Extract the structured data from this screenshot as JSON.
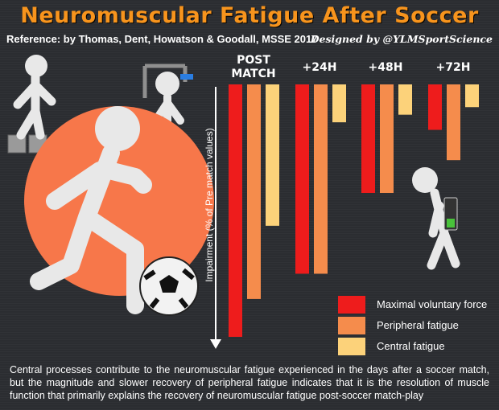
{
  "title": "Neuromuscular Fatigue After Soccer",
  "reference": "Reference: by Thomas, Dent, Howatson & Goodall, MSSE 2017",
  "credit": "Designed by @YLMSportScience",
  "footer_text": "Central processes contribute to the neuromuscular fatigue experienced in the days after a soccer match, but the magnitude and slower recovery of peripheral fatigue indicates that it is the resolution of muscle function that primarily explains the recovery of neuromuscular fatigue post-soccer match-play",
  "colors": {
    "background": "#2b2d31",
    "title": "#f7941d",
    "maximal_voluntary_force": "#ee1c1c",
    "peripheral_fatigue": "#f58c4c",
    "central_fatigue": "#fcd27a",
    "orange_circle": "#f7774a"
  },
  "icons": [
    "stick-figure-on-blocks-icon",
    "stick-figure-clamp-head-icon",
    "running-stick-figure-kicking-ball-icon",
    "tired-stick-figure-low-battery-icon"
  ],
  "chart_data": {
    "type": "bar",
    "title": "",
    "xlabel": "",
    "ylabel": "Impairment (% of Pre match values)",
    "orientation": "downward",
    "categories": [
      "POST MATCH",
      "+24H",
      "+48H",
      "+72H"
    ],
    "series": [
      {
        "name": "Maximal voluntary force",
        "color": "#ee1c1c",
        "values": [
          100,
          75,
          43,
          18
        ]
      },
      {
        "name": "Peripheral fatigue",
        "color": "#f58c4c",
        "values": [
          85,
          75,
          43,
          30
        ]
      },
      {
        "name": "Central fatigue",
        "color": "#fcd27a",
        "values": [
          56,
          15,
          12,
          9
        ]
      }
    ],
    "ylim": [
      0,
      100
    ],
    "grid": false,
    "legend_position": "bottom-right"
  }
}
